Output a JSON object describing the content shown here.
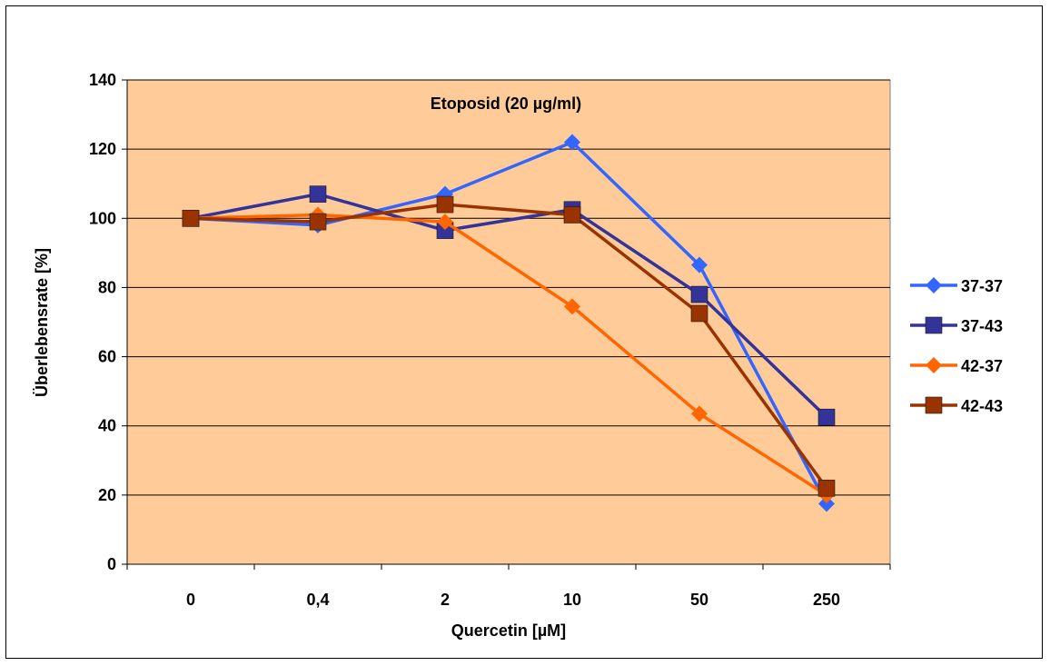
{
  "chart_data": {
    "type": "line",
    "title": "Etoposid (20 µg/ml)",
    "xlabel": "Quercetin [µM]",
    "ylabel": "Überlebensrate [%]",
    "categories": [
      "0",
      "0,4",
      "2",
      "10",
      "50",
      "250"
    ],
    "ylim": [
      0,
      140
    ],
    "yticks": [
      0,
      20,
      40,
      60,
      80,
      100,
      120,
      140
    ],
    "grid": true,
    "legend_position": "right",
    "plot_background": "#FFCC99",
    "series": [
      {
        "name": "37-37",
        "marker": "diamond",
        "color": "#3366FF",
        "values": [
          100,
          98,
          107,
          122,
          86.5,
          17.5
        ]
      },
      {
        "name": "37-43",
        "marker": "square",
        "color": "#333399",
        "values": [
          100,
          107,
          96.5,
          102.5,
          78,
          42.5
        ]
      },
      {
        "name": "42-37",
        "marker": "diamond",
        "color": "#FF6600",
        "values": [
          100,
          101,
          99,
          74.5,
          43.5,
          20
        ]
      },
      {
        "name": "42-43",
        "marker": "square",
        "color": "#993300",
        "values": [
          100,
          99,
          104,
          101,
          72.5,
          22
        ]
      }
    ]
  }
}
